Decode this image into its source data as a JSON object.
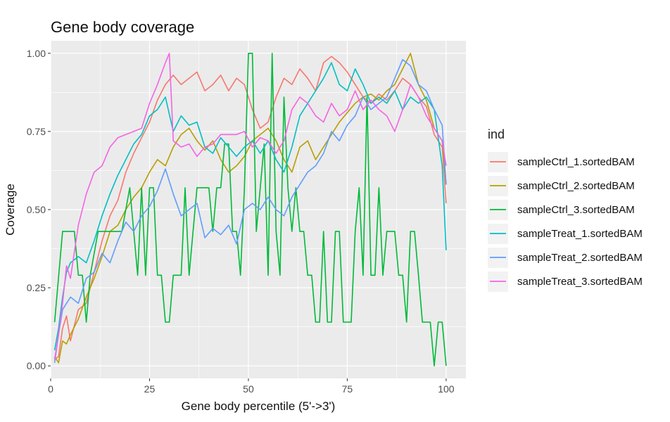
{
  "chart_data": {
    "type": "line",
    "title": "Gene body coverage",
    "xlabel": "Gene body percentile (5'->3')",
    "ylabel": "Coverage",
    "xlim": [
      0,
      105
    ],
    "ylim": [
      -0.04,
      1.04
    ],
    "xticks": [
      0,
      25,
      50,
      75,
      100
    ],
    "xtick_labels": [
      "0",
      "25",
      "50",
      "75",
      "100"
    ],
    "yticks": [
      0,
      0.25,
      0.5,
      0.75,
      1
    ],
    "ytick_labels": [
      "0.00",
      "0.25",
      "0.50",
      "0.75",
      "1.00"
    ],
    "grid": true,
    "legend": {
      "title": "ind",
      "placement": "right"
    },
    "series": [
      {
        "name": "sampleCtrl_1.sortedBAM",
        "color": "#F8766D",
        "x": [
          1,
          2,
          3,
          4,
          5,
          7,
          9,
          11,
          13,
          15,
          17,
          19,
          21,
          23,
          25,
          27,
          29,
          31,
          33,
          35,
          37,
          39,
          41,
          43,
          45,
          47,
          49,
          51,
          53,
          55,
          57,
          59,
          61,
          63,
          65,
          67,
          69,
          71,
          73,
          75,
          77,
          79,
          81,
          83,
          85,
          87,
          89,
          91,
          93,
          95,
          97,
          99,
          100
        ],
        "y": [
          0.02,
          0.03,
          0.12,
          0.16,
          0.08,
          0.18,
          0.2,
          0.3,
          0.4,
          0.48,
          0.53,
          0.62,
          0.68,
          0.73,
          0.78,
          0.85,
          0.9,
          0.93,
          0.9,
          0.92,
          0.94,
          0.88,
          0.9,
          0.93,
          0.88,
          0.92,
          0.9,
          0.82,
          0.76,
          0.78,
          0.86,
          0.92,
          0.9,
          0.95,
          0.92,
          0.88,
          0.97,
          0.99,
          0.97,
          0.94,
          0.9,
          0.86,
          0.84,
          0.87,
          0.85,
          0.88,
          0.92,
          0.9,
          0.86,
          0.83,
          0.74,
          0.7,
          0.52
        ]
      },
      {
        "name": "sampleCtrl_2.sortedBAM",
        "color": "#B79F00",
        "x": [
          1,
          2,
          3,
          4,
          5,
          7,
          9,
          11,
          13,
          15,
          17,
          19,
          21,
          23,
          25,
          27,
          29,
          31,
          33,
          35,
          37,
          39,
          41,
          43,
          45,
          47,
          49,
          51,
          53,
          55,
          57,
          59,
          61,
          63,
          65,
          67,
          69,
          71,
          73,
          75,
          77,
          79,
          81,
          83,
          85,
          87,
          89,
          91,
          93,
          95,
          97,
          99,
          100
        ],
        "y": [
          0.03,
          0.01,
          0.08,
          0.07,
          0.1,
          0.15,
          0.22,
          0.28,
          0.35,
          0.43,
          0.45,
          0.5,
          0.54,
          0.57,
          0.62,
          0.66,
          0.64,
          0.7,
          0.74,
          0.76,
          0.72,
          0.69,
          0.72,
          0.66,
          0.62,
          0.64,
          0.67,
          0.72,
          0.74,
          0.76,
          0.72,
          0.66,
          0.62,
          0.7,
          0.72,
          0.66,
          0.7,
          0.74,
          0.78,
          0.81,
          0.84,
          0.86,
          0.87,
          0.85,
          0.88,
          0.9,
          0.95,
          1.0,
          0.9,
          0.85,
          0.76,
          0.72,
          0.58
        ]
      },
      {
        "name": "sampleCtrl_3.sortedBAM",
        "color": "#00BA38",
        "x": [
          1,
          3,
          4,
          5,
          6,
          7,
          8,
          9,
          10,
          12,
          14,
          16,
          18,
          20,
          22,
          23,
          24,
          25,
          26,
          27,
          28,
          29,
          30,
          31,
          32,
          33,
          34,
          35,
          36,
          37,
          38,
          39,
          40,
          41,
          42,
          43,
          44,
          45,
          46,
          47,
          48,
          49,
          50,
          51,
          52,
          53,
          54,
          55,
          56,
          57,
          58,
          59,
          60,
          61,
          62,
          63,
          64,
          65,
          66,
          67,
          68,
          69,
          70,
          71,
          72,
          73,
          74,
          75,
          76,
          77,
          78,
          79,
          80,
          81,
          82,
          83,
          84,
          85,
          86,
          87,
          88,
          89,
          90,
          91,
          92,
          93,
          94,
          95,
          96,
          97,
          98,
          99,
          100
        ],
        "y": [
          0.14,
          0.43,
          0.43,
          0.43,
          0.43,
          0.29,
          0.29,
          0.14,
          0.29,
          0.43,
          0.43,
          0.43,
          0.43,
          0.57,
          0.29,
          0.57,
          0.29,
          0.57,
          0.57,
          0.29,
          0.29,
          0.14,
          0.14,
          0.29,
          0.29,
          0.29,
          0.57,
          0.29,
          0.43,
          0.57,
          0.57,
          0.57,
          0.57,
          0.43,
          0.57,
          0.57,
          0.71,
          0.71,
          0.43,
          0.43,
          0.29,
          0.57,
          1.0,
          1.0,
          0.43,
          0.57,
          0.71,
          0.29,
          1.0,
          0.43,
          0.29,
          0.86,
          0.57,
          0.43,
          0.57,
          0.43,
          0.43,
          0.29,
          0.29,
          0.14,
          0.14,
          0.43,
          0.14,
          0.14,
          0.43,
          0.43,
          0.14,
          0.14,
          0.14,
          0.43,
          0.57,
          0.29,
          0.86,
          0.29,
          0.29,
          0.57,
          0.29,
          0.43,
          0.43,
          0.43,
          0.29,
          0.29,
          0.14,
          0.43,
          0.43,
          0.29,
          0.14,
          0.14,
          0.14,
          0.0,
          0.14,
          0.14,
          0.0
        ]
      },
      {
        "name": "sampleTreat_1.sortedBAM",
        "color": "#00BFC4",
        "x": [
          1,
          2,
          3,
          4,
          5,
          7,
          9,
          11,
          13,
          15,
          17,
          19,
          21,
          23,
          25,
          27,
          29,
          31,
          33,
          35,
          37,
          39,
          41,
          43,
          45,
          47,
          49,
          51,
          53,
          55,
          57,
          59,
          61,
          63,
          65,
          67,
          69,
          71,
          73,
          75,
          77,
          79,
          81,
          83,
          85,
          87,
          89,
          91,
          93,
          95,
          97,
          99,
          100
        ],
        "y": [
          0.05,
          0.12,
          0.22,
          0.3,
          0.33,
          0.35,
          0.33,
          0.4,
          0.48,
          0.55,
          0.61,
          0.66,
          0.71,
          0.74,
          0.8,
          0.82,
          0.86,
          0.75,
          0.8,
          0.77,
          0.78,
          0.7,
          0.68,
          0.73,
          0.7,
          0.67,
          0.7,
          0.72,
          0.68,
          0.72,
          0.66,
          0.62,
          0.7,
          0.8,
          0.84,
          0.88,
          0.92,
          0.97,
          0.9,
          0.88,
          0.95,
          0.9,
          0.84,
          0.86,
          0.84,
          0.88,
          0.82,
          0.86,
          0.84,
          0.86,
          0.82,
          0.64,
          0.37
        ]
      },
      {
        "name": "sampleTreat_2.sortedBAM",
        "color": "#619CFF",
        "x": [
          1,
          2,
          3,
          4,
          5,
          7,
          9,
          11,
          13,
          15,
          17,
          19,
          21,
          23,
          25,
          27,
          29,
          31,
          33,
          35,
          37,
          39,
          41,
          43,
          45,
          47,
          49,
          51,
          53,
          55,
          57,
          59,
          61,
          63,
          65,
          67,
          69,
          71,
          73,
          75,
          77,
          79,
          81,
          83,
          85,
          87,
          89,
          91,
          93,
          95,
          97,
          99,
          100
        ],
        "y": [
          0.01,
          0.1,
          0.18,
          0.2,
          0.22,
          0.2,
          0.28,
          0.3,
          0.36,
          0.33,
          0.4,
          0.46,
          0.43,
          0.48,
          0.51,
          0.56,
          0.63,
          0.55,
          0.48,
          0.5,
          0.52,
          0.41,
          0.44,
          0.42,
          0.45,
          0.39,
          0.5,
          0.52,
          0.5,
          0.54,
          0.5,
          0.48,
          0.54,
          0.58,
          0.62,
          0.64,
          0.68,
          0.75,
          0.72,
          0.77,
          0.8,
          0.86,
          0.82,
          0.84,
          0.86,
          0.92,
          0.98,
          0.96,
          0.9,
          0.88,
          0.82,
          0.77,
          0.58
        ]
      },
      {
        "name": "sampleTreat_3.sortedBAM",
        "color": "#F564E3",
        "x": [
          1,
          2,
          3,
          4,
          5,
          7,
          9,
          11,
          13,
          15,
          17,
          19,
          21,
          23,
          25,
          27,
          29,
          30,
          31,
          33,
          35,
          37,
          39,
          41,
          43,
          45,
          47,
          49,
          51,
          53,
          55,
          57,
          59,
          61,
          63,
          65,
          67,
          69,
          71,
          73,
          75,
          77,
          79,
          81,
          83,
          85,
          87,
          89,
          91,
          93,
          95,
          97,
          99,
          100
        ],
        "y": [
          0.02,
          0.1,
          0.2,
          0.32,
          0.28,
          0.45,
          0.55,
          0.62,
          0.64,
          0.7,
          0.73,
          0.74,
          0.75,
          0.76,
          0.84,
          0.9,
          0.97,
          1.0,
          0.72,
          0.7,
          0.71,
          0.67,
          0.7,
          0.71,
          0.74,
          0.74,
          0.74,
          0.75,
          0.7,
          0.73,
          0.72,
          0.68,
          0.72,
          0.82,
          0.86,
          0.84,
          0.8,
          0.78,
          0.84,
          0.8,
          0.82,
          0.88,
          0.82,
          0.85,
          0.82,
          0.8,
          0.75,
          0.82,
          0.9,
          0.86,
          0.8,
          0.76,
          0.72,
          0.64
        ]
      }
    ]
  }
}
